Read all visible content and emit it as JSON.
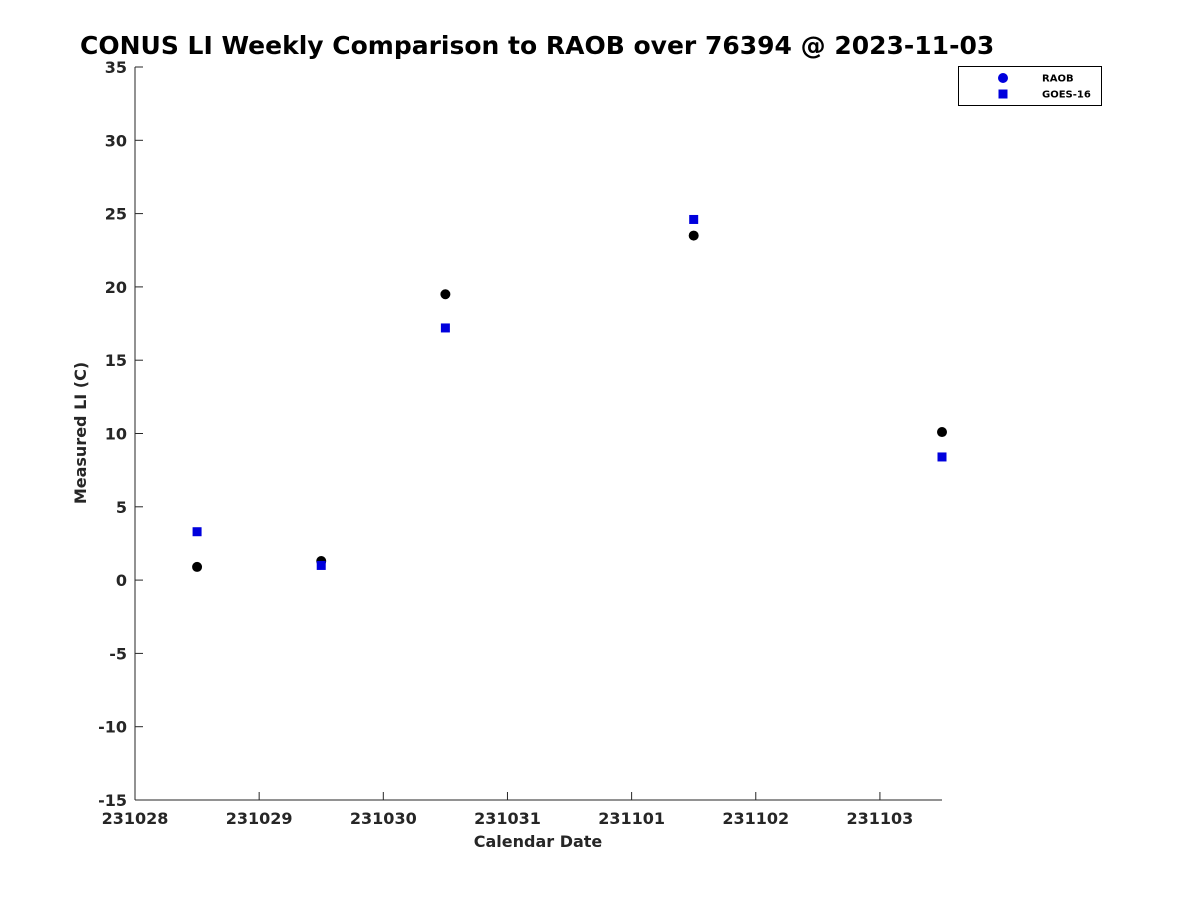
{
  "chart_data": {
    "type": "scatter",
    "title": "CONUS LI Weekly Comparison to RAOB over 76394 @ 2023-11-03",
    "xlabel": "Calendar Date",
    "ylabel": "Measured LI (C)",
    "xlim": [
      "231028",
      "231103 12:00"
    ],
    "ylim": [
      -15,
      35
    ],
    "x_tick_labels": [
      "231028",
      "231029",
      "231030",
      "231031",
      "231101",
      "231102",
      "231103"
    ],
    "y_ticks": [
      35,
      30,
      25,
      20,
      15,
      10,
      5,
      0,
      -5,
      -10,
      -15
    ],
    "grid": false,
    "legend_position": "top-right",
    "series": [
      {
        "name": "RAOB",
        "marker": "circle",
        "color": "#000000",
        "legend_color": "#0000dd",
        "points": [
          {
            "x": "231028 12:00",
            "y": 0.9
          },
          {
            "x": "231029 12:00",
            "y": 1.3
          },
          {
            "x": "231030 12:00",
            "y": 19.5
          },
          {
            "x": "231101 12:00",
            "y": 23.5
          },
          {
            "x": "231103 12:00",
            "y": 10.1
          }
        ]
      },
      {
        "name": "GOES-16",
        "marker": "square",
        "color": "#0000dd",
        "legend_color": "#0000dd",
        "points": [
          {
            "x": "231028 12:00",
            "y": 3.3
          },
          {
            "x": "231029 12:00",
            "y": 1.0
          },
          {
            "x": "231030 12:00",
            "y": 17.2
          },
          {
            "x": "231101 12:00",
            "y": 24.6
          },
          {
            "x": "231103 12:00",
            "y": 8.4
          }
        ]
      }
    ]
  }
}
